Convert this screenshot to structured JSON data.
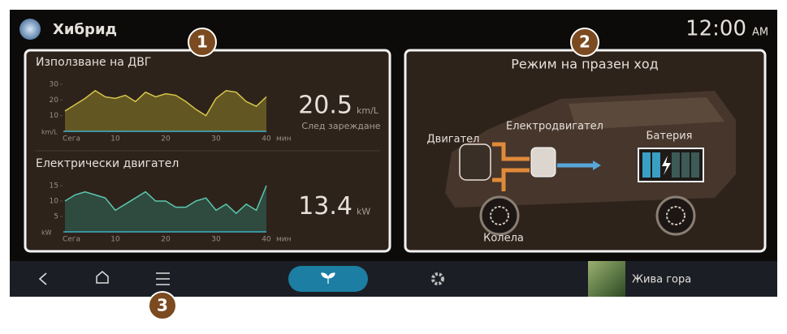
{
  "header": {
    "title": "Хибрид",
    "time": "12:00",
    "ampm": "AM"
  },
  "callouts": [
    "1",
    "2",
    "3"
  ],
  "panels": [
    {
      "charts": [
        {
          "type": "area",
          "title": "Използване на ДВГ",
          "y_unit": "km/L",
          "x_unit": "мин",
          "x": [
            0,
            2,
            4,
            6,
            8,
            10,
            12,
            14,
            16,
            18,
            20,
            22,
            24,
            26,
            28,
            30,
            32,
            34,
            36,
            38,
            40
          ],
          "values": [
            13,
            17,
            21,
            26,
            22,
            21,
            23,
            19,
            25,
            22,
            24,
            23,
            19,
            14,
            10,
            21,
            26,
            25,
            19,
            16,
            22
          ],
          "color": "#d8c54a",
          "fill": "#6b6024",
          "xlim": [
            0,
            40
          ],
          "xticks": [
            {
              "value": 0,
              "label": "Сега"
            },
            10,
            20,
            30,
            40
          ],
          "ylim": [
            0,
            30
          ],
          "yticks": [
            10,
            20,
            30
          ],
          "reading": "20.5",
          "reading_unit": "km/L",
          "reading_note": "След зареждане"
        },
        {
          "type": "area",
          "title": "Електрически двигател",
          "y_unit": "kW",
          "x_unit": "мин",
          "x": [
            0,
            2,
            4,
            6,
            8,
            10,
            12,
            14,
            16,
            18,
            20,
            22,
            24,
            26,
            28,
            30,
            32,
            34,
            36,
            38,
            40
          ],
          "values": [
            10,
            12,
            13,
            12,
            11,
            7,
            9,
            11,
            13,
            10,
            10,
            8,
            8,
            10,
            11,
            7,
            9,
            6,
            9,
            7,
            15
          ],
          "color": "#5cc7b0",
          "fill": "#2f5144",
          "xlim": [
            0,
            40
          ],
          "xticks": [
            {
              "value": 0,
              "label": "Сега"
            },
            10,
            20,
            30,
            40
          ],
          "ylim": [
            0,
            15
          ],
          "yticks": [
            5,
            10,
            15
          ],
          "reading": "13.4",
          "reading_unit": "kW"
        }
      ]
    },
    {
      "title": "Режим на празен ход",
      "labels": {
        "engine": "Двигател",
        "motor": "Електродвигател",
        "battery": "Батерия",
        "wheels": "Колела"
      }
    }
  ],
  "nav": {
    "media": "Жива гора"
  }
}
